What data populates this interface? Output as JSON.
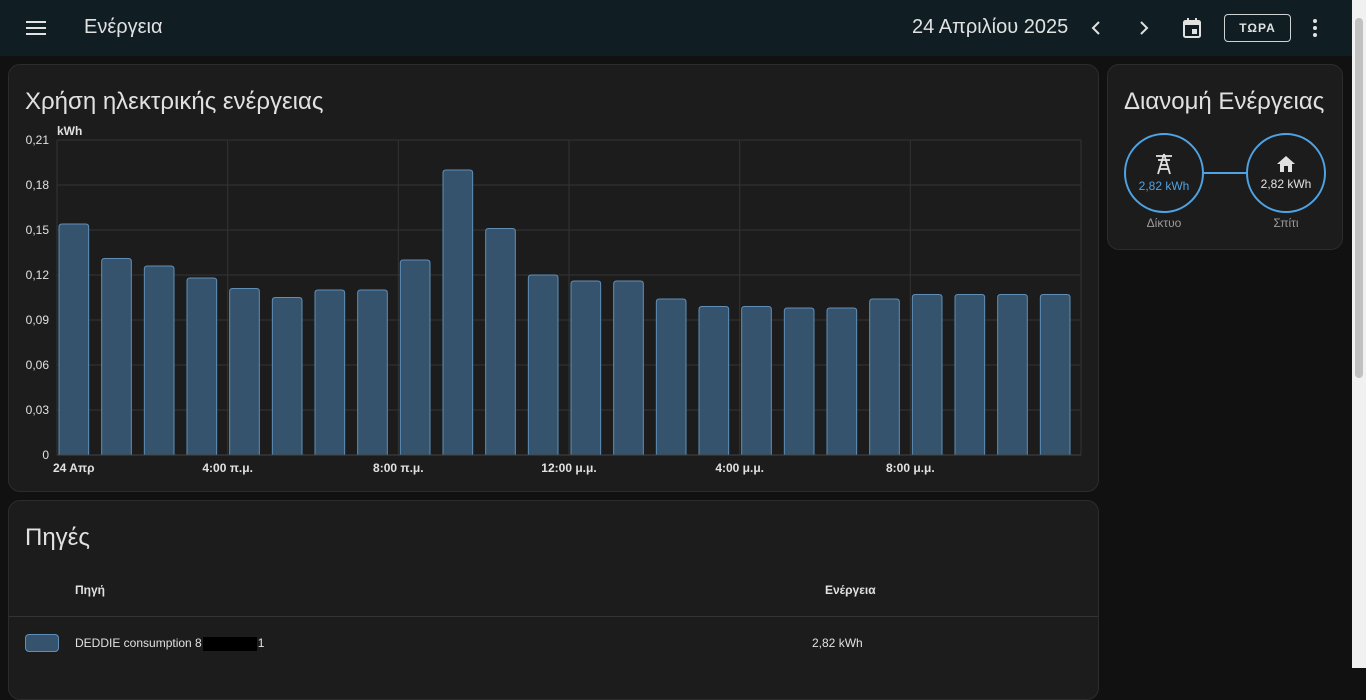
{
  "header": {
    "title": "Ενέργεια",
    "date": "24 Απριλίου 2025",
    "now_label": "ΤΩΡΑ",
    "icons": {
      "menu": "menu-icon",
      "prev": "chevron-left-icon",
      "next": "chevron-right-icon",
      "calendar": "calendar-icon",
      "more": "more-vertical-icon"
    }
  },
  "usage_card": {
    "title": "Χρήση ηλεκτρικής ενέργειας"
  },
  "chart_data": {
    "type": "bar",
    "ylabel": "kWh",
    "ylim": [
      0,
      0.21
    ],
    "y_ticks": [
      "0",
      "0,03",
      "0,06",
      "0,09",
      "0,12",
      "0,15",
      "0,18",
      "0,21"
    ],
    "x_ticks": [
      {
        "hour": 0,
        "label": "24 Απρ"
      },
      {
        "hour": 4,
        "label": "4:00 π.μ."
      },
      {
        "hour": 8,
        "label": "8:00 π.μ."
      },
      {
        "hour": 12,
        "label": "12:00 μ.μ."
      },
      {
        "hour": 16,
        "label": "4:00 μ.μ."
      },
      {
        "hour": 20,
        "label": "8:00 μ.μ."
      }
    ],
    "hours": [
      0,
      1,
      2,
      3,
      4,
      5,
      6,
      7,
      8,
      9,
      10,
      11,
      12,
      13,
      14,
      15,
      16,
      17,
      18,
      19,
      20,
      21,
      22,
      23
    ],
    "values": [
      0.154,
      0.131,
      0.126,
      0.118,
      0.111,
      0.105,
      0.11,
      0.11,
      0.13,
      0.19,
      0.151,
      0.12,
      0.116,
      0.116,
      0.104,
      0.099,
      0.099,
      0.098,
      0.098,
      0.104,
      0.107,
      0.107,
      0.107,
      0.107
    ],
    "bar_color": "#36536e",
    "bar_border": "#5f8fb8",
    "grid": true
  },
  "distribution_card": {
    "title": "Διανομή Ενέργειας",
    "grid": {
      "value": "2,82 kWh",
      "label": "Δίκτυο",
      "icon": "transmission-tower-icon"
    },
    "home": {
      "value": "2,82 kWh",
      "label": "Σπίτι",
      "icon": "home-icon"
    },
    "accent": "#4fa3e3"
  },
  "sources_card": {
    "title": "Πηγές",
    "col_source": "Πηγή",
    "col_energy": "Ενέργεια",
    "rows": [
      {
        "name_prefix": "DEDDIE consumption 8",
        "name_suffix": "1",
        "energy": "2,82 kWh"
      }
    ]
  }
}
